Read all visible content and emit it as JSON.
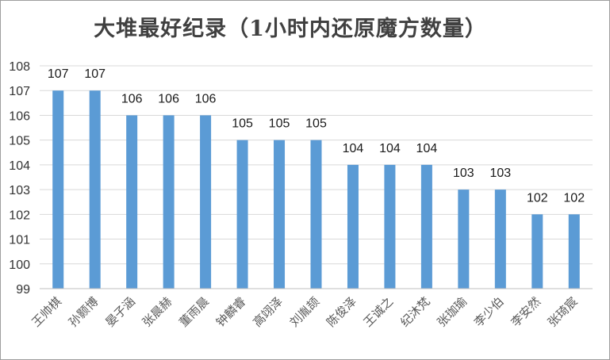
{
  "chart_data": {
    "type": "bar",
    "title": "大堆最好纪录（1小时内还原魔方数量）",
    "categories": [
      "王帅棋",
      "孙颢博",
      "晏子涵",
      "张晨赫",
      "董雨晨",
      "钟麟睿",
      "高翊泽",
      "刘胤颉",
      "陈俊泽",
      "王诚之",
      "纪沐梵",
      "张珈瑜",
      "李少伯",
      "李安然",
      "张琦宸"
    ],
    "series": [
      {
        "values": [
          107,
          107,
          106,
          106,
          106,
          105,
          105,
          105,
          104,
          104,
          104,
          103,
          103,
          102,
          102
        ],
        "color": "#5B9BD5"
      }
    ],
    "ylim": [
      99,
      108
    ],
    "yticks": [
      99,
      100,
      101,
      102,
      103,
      104,
      105,
      106,
      107,
      108
    ],
    "xlabel": "",
    "ylabel": "",
    "grid": true,
    "gridColor": "#d9d9d9",
    "data_labels": true,
    "x_label_rotation": -45
  }
}
